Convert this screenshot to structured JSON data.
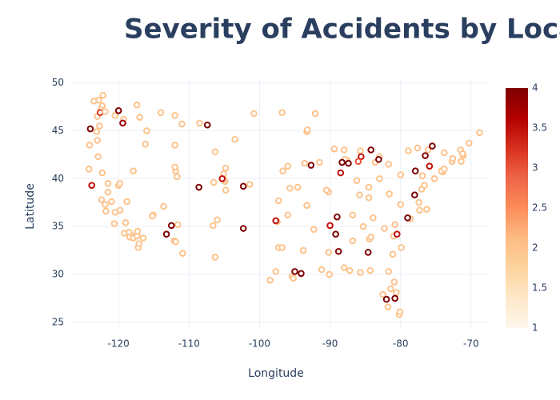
{
  "chart_data": {
    "type": "scatter",
    "title": "Severity of Accidents by Location",
    "x_label": "Longitude",
    "y_label": "Latitude",
    "xlim": [
      -126.6,
      -67.6
    ],
    "ylim": [
      24.4,
      50.3
    ],
    "xticks": [
      -120,
      -110,
      -100,
      -90,
      -80,
      -70
    ],
    "yticks": [
      25,
      30,
      35,
      40,
      45,
      50
    ],
    "grid": true,
    "clim": [
      1,
      4
    ],
    "cticks": [
      1,
      1.5,
      2,
      2.5,
      3,
      3.5,
      4
    ],
    "colorscale": [
      [
        0,
        "#fff7ec"
      ],
      [
        0.125,
        "#fee8c8"
      ],
      [
        0.25,
        "#fdd49e"
      ],
      [
        0.375,
        "#fdbb84"
      ],
      [
        0.5,
        "#fc8d59"
      ],
      [
        0.625,
        "#ef6548"
      ],
      [
        0.75,
        "#d7301f"
      ],
      [
        0.875,
        "#b30000"
      ],
      [
        1,
        "#7f0000"
      ]
    ],
    "x": [
      -122.3,
      -122.5,
      -123,
      -122.7,
      -123.1,
      -123.0,
      -124.1,
      -122.9,
      -124.2,
      -122.3,
      -121.5,
      -121.5,
      -122.4,
      -121.9,
      -121.0,
      -120.5,
      -119.8,
      -121.8,
      -119.0,
      -120.6,
      -118.2,
      -118.4,
      -117.9,
      -117.2,
      -117.1,
      -117.4,
      -116.5,
      -118.5,
      -119.2,
      -117.3,
      -120.0,
      -119.8,
      -123.8,
      -124.0,
      -122.6,
      -122.8,
      -123.5,
      -122.2,
      -121.9,
      -120.5,
      -119.3,
      -117.4,
      -116.2,
      -117.0,
      -120.0,
      -119.4,
      -116.0,
      -112.0,
      -111.9,
      -111.7,
      -112.0,
      -112.1,
      -111.9,
      -110.9,
      -111.6,
      -115.1,
      -115.2,
      -113.6,
      -112.5,
      -113.2,
      -104.9,
      -105.0,
      -104.8,
      -105.1,
      -106.6,
      -106.0,
      -106.3,
      -107.4,
      -108.5,
      -111.0,
      -112.0,
      -114.0,
      -106.3,
      -104.8,
      -105.3,
      -103.5,
      -108.6,
      -102.3,
      -102.3,
      -101.4,
      -100.8,
      -96.8,
      -93.3,
      -93.2,
      -92.1,
      -96.7,
      -96.0,
      -94.6,
      -97.3,
      -95.7,
      -97.5,
      -96.0,
      -97.7,
      -97.3,
      -96.8,
      -97.7,
      -98.5,
      -95.4,
      -95.2,
      -94.1,
      -95.0,
      -93.8,
      -92.3,
      -90.2,
      -90.5,
      -93.3,
      -91.2,
      -90.1,
      -90.2,
      -88.0,
      -87.6,
      -87.9,
      -88.0,
      -89.4,
      -85.7,
      -83.0,
      -83.6,
      -84.5,
      -83.0,
      -81.7,
      -86.2,
      -86.8,
      -85.8,
      -84.5,
      -90.0,
      -89.0,
      -86.8,
      -84.4,
      -84.2,
      -85.3,
      -83.9,
      -81.0,
      -80.8,
      -78.6,
      -79.9,
      -81.1,
      -81.7,
      -82.5,
      -81.4,
      -80.2,
      -80.1,
      -81.8,
      -82.0,
      -80.6,
      -84.3,
      -87.2,
      -85.7,
      -80.0,
      -77.0,
      -76.6,
      -77.4,
      -76.3,
      -75.2,
      -74.0,
      -74.2,
      -73.8,
      -72.7,
      -71.1,
      -71.4,
      -71.5,
      -73.8,
      -76.1,
      -77.6,
      -78.9,
      -76.9,
      -75.5,
      -76.5,
      -75.9,
      -77.9,
      -78.0,
      -80.0,
      -81.6,
      -83.1,
      -84.2,
      -85.6,
      -87.4,
      -86.0,
      -88.5,
      -88.3,
      -92.7,
      -89.2,
      -88.8,
      -84.6,
      -80.8,
      -80.5,
      -79.0,
      -77.3,
      -71.2,
      -70.3,
      -68.8,
      -72.6,
      -93.6,
      -91.5,
      -82.3,
      -80.9,
      -106.5,
      -117.9,
      -118.8
    ],
    "y": [
      47.6,
      47.2,
      46.5,
      45.5,
      44.9,
      44.0,
      43.5,
      42.3,
      41.0,
      40.6,
      39.5,
      38.6,
      37.8,
      37.3,
      37.6,
      36.5,
      36.7,
      36.6,
      35.4,
      35.3,
      34.1,
      33.9,
      33.8,
      32.8,
      33.2,
      34.0,
      33.8,
      34.4,
      34.3,
      34.5,
      39.3,
      39.5,
      39.3,
      45.2,
      46.9,
      48.2,
      48.1,
      48.7,
      47.0,
      46.6,
      46.2,
      47.7,
      43.6,
      46.4,
      47.1,
      45.8,
      45.0,
      43.5,
      40.8,
      40.2,
      41.2,
      33.5,
      33.4,
      32.2,
      35.2,
      36.2,
      36.1,
      37.1,
      35.1,
      34.2,
      39.7,
      39.9,
      38.8,
      40.5,
      35.1,
      35.7,
      31.8,
      45.6,
      45.8,
      45.7,
      46.6,
      46.9,
      42.8,
      41.1,
      40.0,
      44.1,
      39.1,
      34.8,
      39.2,
      39.4,
      46.8,
      46.9,
      44.9,
      45.1,
      46.8,
      40.8,
      41.3,
      39.1,
      37.7,
      39.0,
      35.5,
      36.2,
      35.6,
      32.8,
      32.8,
      30.3,
      29.4,
      29.8,
      29.6,
      30.1,
      30.3,
      32.5,
      34.7,
      38.6,
      38.8,
      37.2,
      30.5,
      30.0,
      32.3,
      30.7,
      41.9,
      42.0,
      43.0,
      43.1,
      42.9,
      42.3,
      41.7,
      39.1,
      40.0,
      41.5,
      39.8,
      36.2,
      38.3,
      38.0,
      35.1,
      36.0,
      33.5,
      33.7,
      33.9,
      35.0,
      35.9,
      34.0,
      35.2,
      35.8,
      32.8,
      32.1,
      30.3,
      27.9,
      28.5,
      25.8,
      26.1,
      26.6,
      27.4,
      28.1,
      30.4,
      30.4,
      30.2,
      40.4,
      38.9,
      39.3,
      37.5,
      36.8,
      40.0,
      40.7,
      40.8,
      41.0,
      41.8,
      42.4,
      41.8,
      43.0,
      42.7,
      43.0,
      43.2,
      42.9,
      40.3,
      43.4,
      42.4,
      41.3,
      40.8,
      38.3,
      37.3,
      38.4,
      42.0,
      43.0,
      42.3,
      41.6,
      41.8,
      40.6,
      41.7,
      41.4,
      34.2,
      32.4,
      32.3,
      27.5,
      34.2,
      35.9,
      36.7,
      42.6,
      43.7,
      44.8,
      42.1,
      41.6,
      41.7,
      34.8,
      29.2,
      39.6,
      40.8,
      37.6
    ],
    "severity": [
      2,
      2,
      2,
      2,
      2,
      2,
      2,
      2,
      2,
      2,
      2,
      2,
      2,
      2,
      2,
      2,
      2,
      2,
      2,
      2,
      2,
      2,
      2,
      2,
      2,
      2,
      2,
      2,
      2,
      2,
      2,
      2,
      3.5,
      4,
      3.2,
      2,
      2,
      2,
      2,
      2,
      2,
      2,
      2,
      2,
      4,
      3.8,
      2,
      2,
      2,
      2,
      2,
      2,
      2,
      2,
      2,
      2,
      2,
      2,
      4,
      4,
      2,
      2,
      2,
      2,
      2,
      2,
      2,
      4,
      2,
      2,
      2,
      2,
      2,
      2,
      3.5,
      2,
      4,
      4,
      4,
      2,
      2,
      2,
      2,
      2,
      2,
      2,
      2,
      2,
      2,
      2,
      2,
      2,
      3.5,
      2,
      2,
      2,
      2,
      2,
      2,
      4,
      4,
      2,
      2,
      2,
      2,
      2,
      2,
      2,
      2,
      2,
      2,
      2,
      2,
      2,
      2,
      2,
      2,
      2,
      2,
      2,
      2,
      2,
      2,
      2,
      3.5,
      4,
      2,
      2,
      2,
      2,
      2,
      2,
      2,
      2,
      2,
      2,
      2,
      2,
      2,
      2,
      2,
      2,
      4,
      2,
      2,
      2,
      2,
      2,
      2,
      2,
      2,
      2,
      2,
      2,
      2,
      2,
      2,
      2,
      2,
      2,
      2,
      2,
      2,
      2,
      2,
      4,
      4,
      3.5,
      4,
      4,
      2,
      2,
      4,
      4,
      3.5,
      4,
      3,
      3.5,
      4,
      4,
      4,
      4,
      4,
      4,
      3.5,
      4,
      2,
      2,
      2,
      2,
      2,
      2,
      2,
      2,
      2,
      2,
      2,
      2
    ]
  }
}
